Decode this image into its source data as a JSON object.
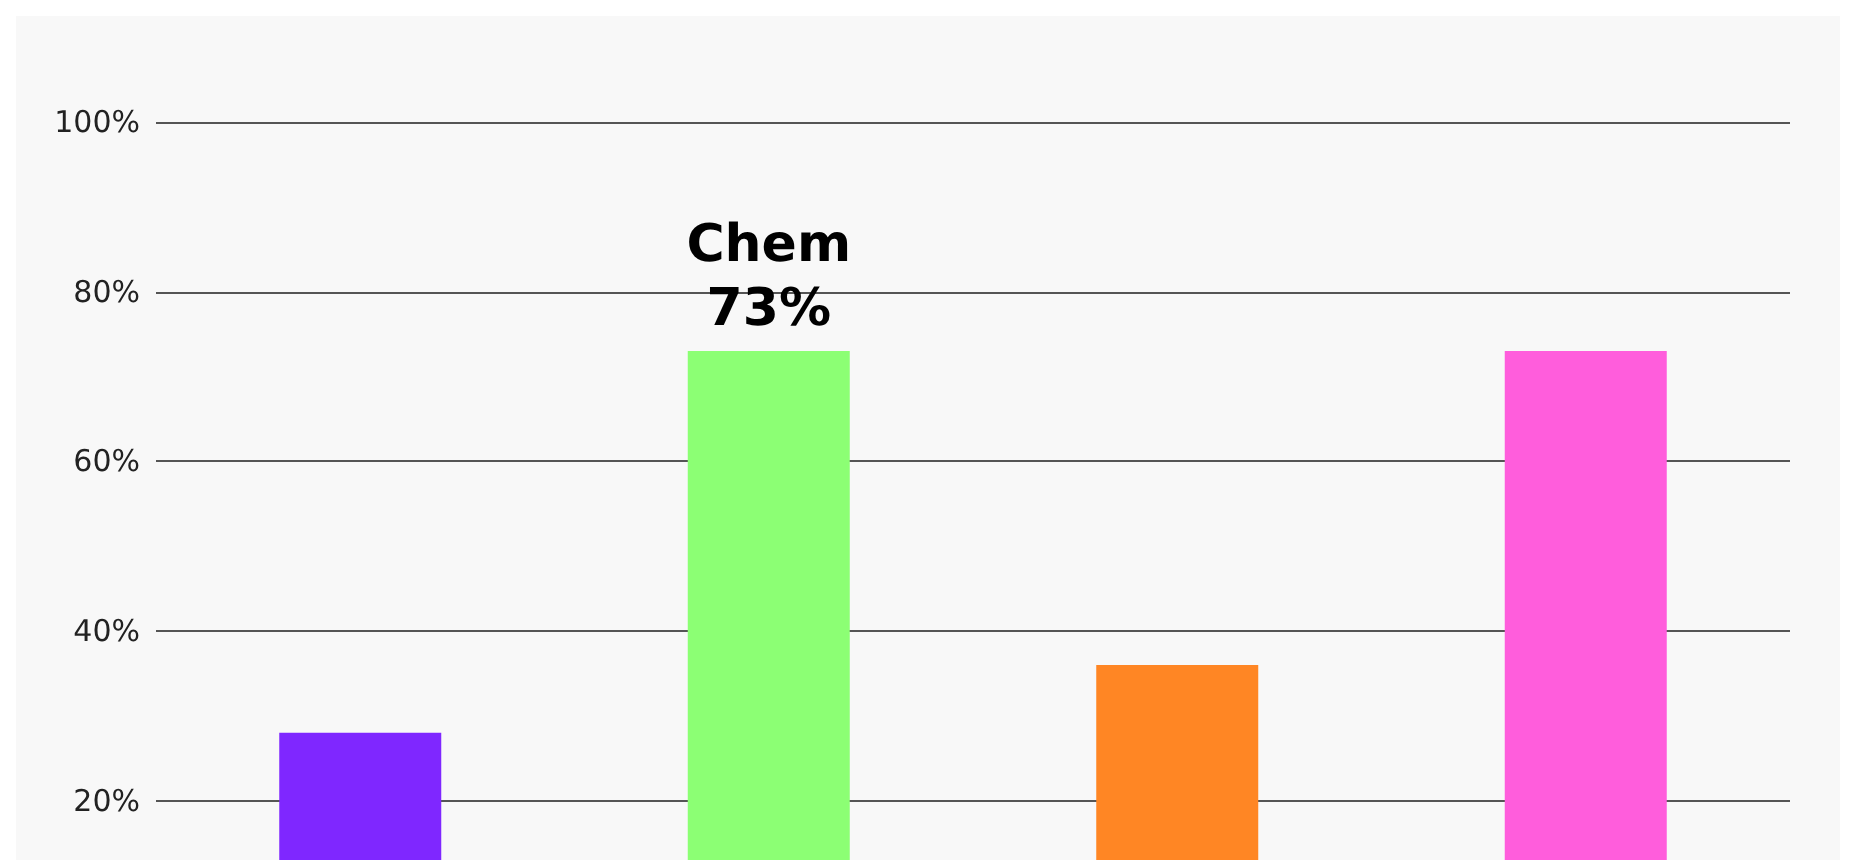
{
  "chart_data": {
    "type": "bar",
    "categories": [
      null,
      null,
      null,
      null
    ],
    "values": [
      28,
      73,
      36,
      73
    ],
    "colors": [
      "#7f27ff",
      "#8cff74",
      "#ff8624",
      "#ff5ddc"
    ],
    "value_labels": [
      null,
      "Chem\n73%",
      null,
      null
    ],
    "ylim": [
      13,
      100
    ],
    "yticks": [
      {
        "value": 20,
        "label": "20%"
      },
      {
        "value": 40,
        "label": "40%"
      },
      {
        "value": 60,
        "label": "60%"
      },
      {
        "value": 80,
        "label": "80%"
      },
      {
        "value": 100,
        "label": "100%"
      }
    ],
    "grid": "y",
    "tick_labels": "y"
  }
}
